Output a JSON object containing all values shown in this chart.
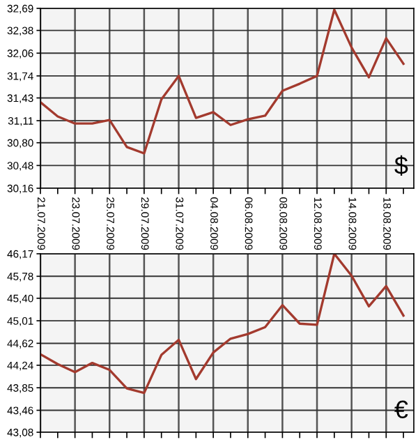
{
  "chart_data": [
    {
      "type": "line",
      "categories": [
        "21.07.2009",
        null,
        "23.07.2009",
        null,
        "25.07.2009",
        null,
        "29.07.2009",
        null,
        "31.07.2009",
        null,
        "04.08.2009",
        null,
        "06.08.2009",
        null,
        "08.08.2009",
        null,
        "12.08.2009",
        null,
        "14.08.2009",
        null,
        "18.08.2009",
        null
      ],
      "series": [
        {
          "color": "#a33a2e",
          "values": [
            31.37,
            31.17,
            31.07,
            31.07,
            31.12,
            30.74,
            30.65,
            31.41,
            31.74,
            31.15,
            31.23,
            31.05,
            31.13,
            31.18,
            31.53,
            31.63,
            31.74,
            32.67,
            32.14,
            31.72,
            32.27,
            31.91
          ]
        }
      ],
      "ylim": [
        30.16,
        32.69
      ],
      "yticks": [
        {
          "value": 30.16,
          "label": "30,16"
        },
        {
          "value": 30.48,
          "label": "30,48"
        },
        {
          "value": 30.8,
          "label": "30,80"
        },
        {
          "value": 31.11,
          "label": "31,11"
        },
        {
          "value": 31.43,
          "label": "31,43"
        },
        {
          "value": 31.74,
          "label": "31,74"
        },
        {
          "value": 32.06,
          "label": "32,06"
        },
        {
          "value": 32.38,
          "label": "32,38"
        },
        {
          "value": 32.69,
          "label": "32,69"
        }
      ],
      "grid": true,
      "marker": "none",
      "line_style": "solid",
      "annotations": [
        "$"
      ]
    },
    {
      "type": "line",
      "categories": [
        "21.07.2009",
        null,
        "23.07.2009",
        null,
        "25.07.2009",
        null,
        "29.07.2009",
        null,
        "31.07.2009",
        null,
        "04.08.2009",
        null,
        "06.08.2009",
        null,
        "08.08.2009",
        null,
        "12.08.2009",
        null,
        "14.08.2009",
        null,
        "18.08.2009",
        null
      ],
      "series": [
        {
          "color": "#a33a2e",
          "values": [
            44.43,
            44.26,
            44.12,
            44.28,
            44.16,
            43.84,
            43.76,
            44.42,
            44.68,
            44.0,
            44.46,
            44.7,
            44.78,
            44.9,
            45.28,
            44.96,
            44.94,
            46.17,
            45.79,
            45.26,
            45.61,
            45.1
          ]
        }
      ],
      "ylim": [
        43.08,
        46.17
      ],
      "yticks": [
        {
          "value": 43.08,
          "label": "43,08"
        },
        {
          "value": 43.46,
          "label": "43,46"
        },
        {
          "value": 43.85,
          "label": "43,85"
        },
        {
          "value": 44.24,
          "label": "44,24"
        },
        {
          "value": 44.62,
          "label": "44,62"
        },
        {
          "value": 45.01,
          "label": "45,01"
        },
        {
          "value": 45.4,
          "label": "45,40"
        },
        {
          "value": 45.78,
          "label": "45,78"
        },
        {
          "value": 46.17,
          "label": "46,17"
        }
      ],
      "grid": true,
      "marker": "none",
      "line_style": "solid",
      "tick_labels": "y",
      "annotations": [
        "€"
      ]
    }
  ]
}
